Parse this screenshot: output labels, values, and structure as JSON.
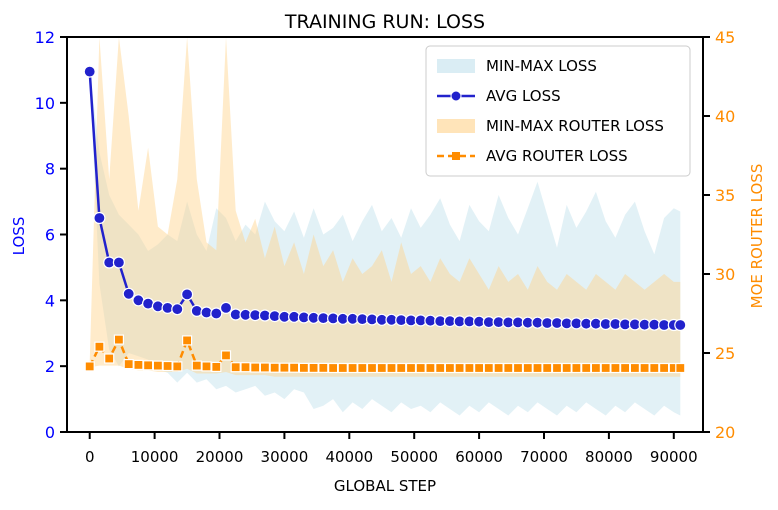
{
  "chart_data": {
    "type": "line",
    "title": "TRAINING RUN: LOSS",
    "xlabel": "GLOBAL STEP",
    "ylabel_left": "LOSS",
    "ylabel_right": "MOE ROUTER LOSS",
    "xlim": [
      -3500,
      94500
    ],
    "ylim_left": [
      0,
      12
    ],
    "ylim_right": [
      20,
      45
    ],
    "xticks": [
      0,
      10000,
      20000,
      30000,
      40000,
      50000,
      60000,
      70000,
      80000,
      90000
    ],
    "yticks_left": [
      0,
      2,
      4,
      6,
      8,
      10,
      12
    ],
    "yticks_right": [
      20,
      25,
      30,
      35,
      40,
      45
    ],
    "legend_position": "top-right",
    "grid": false,
    "colors": {
      "avg_loss": "#2222cc",
      "left_axis": "#0000ff",
      "router": "#ff8c00",
      "minmax_loss_fill": "#add8e6",
      "minmax_router_fill": "#ffd28a"
    },
    "x": [
      0,
      1500,
      3000,
      4500,
      6000,
      7500,
      9000,
      10500,
      12000,
      13500,
      15000,
      16500,
      18000,
      19500,
      21000,
      22500,
      24000,
      25500,
      27000,
      28500,
      30000,
      31500,
      33000,
      34500,
      36000,
      37500,
      39000,
      40500,
      42000,
      43500,
      45000,
      46500,
      48000,
      49500,
      51000,
      52500,
      54000,
      55500,
      57000,
      58500,
      60000,
      61500,
      63000,
      64500,
      66000,
      67500,
      69000,
      70500,
      72000,
      73500,
      75000,
      76500,
      78000,
      79500,
      81000,
      82500,
      84000,
      85500,
      87000,
      88500,
      90000,
      91000
    ],
    "series": [
      {
        "name": "AVG LOSS",
        "axis": "left",
        "values": [
          10.95,
          6.5,
          5.15,
          5.15,
          4.2,
          4.0,
          3.9,
          3.82,
          3.77,
          3.73,
          4.18,
          3.68,
          3.63,
          3.6,
          3.77,
          3.57,
          3.56,
          3.55,
          3.54,
          3.52,
          3.5,
          3.5,
          3.48,
          3.47,
          3.46,
          3.45,
          3.44,
          3.44,
          3.43,
          3.42,
          3.41,
          3.41,
          3.4,
          3.39,
          3.39,
          3.38,
          3.37,
          3.37,
          3.36,
          3.36,
          3.35,
          3.34,
          3.34,
          3.33,
          3.33,
          3.32,
          3.32,
          3.31,
          3.31,
          3.3,
          3.3,
          3.29,
          3.29,
          3.28,
          3.28,
          3.27,
          3.27,
          3.26,
          3.26,
          3.25,
          3.25,
          3.25
        ]
      },
      {
        "name": "AVG ROUTER LOSS",
        "axis": "right",
        "values": [
          24.15,
          25.4,
          24.65,
          25.85,
          24.3,
          24.25,
          24.22,
          24.2,
          24.18,
          24.15,
          25.8,
          24.2,
          24.15,
          24.12,
          24.85,
          24.1,
          24.1,
          24.08,
          24.08,
          24.07,
          24.07,
          24.07,
          24.06,
          24.06,
          24.06,
          24.05,
          24.05,
          24.05,
          24.05,
          24.05,
          24.05,
          24.05,
          24.05,
          24.05,
          24.05,
          24.05,
          24.05,
          24.05,
          24.05,
          24.05,
          24.05,
          24.05,
          24.05,
          24.05,
          24.05,
          24.05,
          24.05,
          24.05,
          24.05,
          24.05,
          24.05,
          24.05,
          24.05,
          24.05,
          24.05,
          24.05,
          24.05,
          24.05,
          24.05,
          24.05,
          24.05,
          24.05
        ]
      }
    ],
    "bands": [
      {
        "name": "MIN-MAX LOSS",
        "axis": "left",
        "lower": [
          10.9,
          4.5,
          2.5,
          2.0,
          2.4,
          2.3,
          2.2,
          1.9,
          1.8,
          1.5,
          1.8,
          1.5,
          1.6,
          1.3,
          1.4,
          1.2,
          1.3,
          1.4,
          1.1,
          1.2,
          1.0,
          1.3,
          1.2,
          0.7,
          0.8,
          1.0,
          0.6,
          0.9,
          0.7,
          1.0,
          0.8,
          0.6,
          0.9,
          0.7,
          0.8,
          0.6,
          0.9,
          0.7,
          0.5,
          0.8,
          0.6,
          0.9,
          0.7,
          0.5,
          0.8,
          0.6,
          0.9,
          0.7,
          0.5,
          0.8,
          0.6,
          0.9,
          0.7,
          0.5,
          0.8,
          0.6,
          0.9,
          0.7,
          0.5,
          0.8,
          0.6,
          0.5
        ],
        "upper": [
          11.0,
          8.5,
          7.2,
          6.6,
          6.3,
          6.0,
          5.5,
          5.7,
          6.0,
          5.8,
          7.0,
          6.0,
          5.5,
          6.8,
          6.5,
          5.8,
          6.3,
          6.0,
          7.0,
          6.4,
          6.1,
          6.7,
          5.9,
          6.8,
          6.0,
          6.2,
          6.6,
          5.8,
          6.4,
          6.9,
          6.1,
          6.5,
          5.9,
          6.8,
          6.2,
          6.6,
          7.1,
          6.3,
          5.8,
          6.9,
          6.4,
          6.1,
          7.2,
          6.5,
          6.0,
          6.8,
          7.6,
          6.6,
          5.6,
          6.9,
          6.2,
          6.7,
          7.3,
          6.4,
          5.9,
          6.6,
          7.0,
          6.1,
          5.4,
          6.5,
          6.8,
          6.7
        ]
      },
      {
        "name": "MIN-MAX ROUTER LOSS",
        "axis": "right",
        "lower": [
          24.1,
          24.2,
          24.2,
          24.2,
          24.0,
          23.9,
          23.9,
          23.8,
          23.8,
          23.8,
          24.0,
          23.7,
          23.7,
          23.7,
          23.8,
          23.6,
          23.6,
          23.6,
          23.6,
          23.5,
          23.5,
          23.5,
          23.5,
          23.5,
          23.5,
          23.5,
          23.5,
          23.5,
          23.5,
          23.5,
          23.5,
          23.5,
          23.5,
          23.5,
          23.5,
          23.5,
          23.5,
          23.5,
          23.5,
          23.5,
          23.5,
          23.5,
          23.5,
          23.5,
          23.5,
          23.5,
          23.5,
          23.5,
          23.5,
          23.5,
          23.5,
          23.5,
          23.5,
          23.5,
          23.5,
          23.5,
          23.5,
          23.5,
          23.5,
          23.5,
          23.5,
          23.5
        ],
        "upper": [
          24.4,
          45.0,
          36.0,
          45.0,
          40.0,
          34.0,
          38.0,
          33.0,
          32.5,
          36.0,
          45.0,
          36.0,
          32.0,
          31.5,
          45.0,
          34.0,
          32.0,
          33.5,
          31.0,
          33.0,
          30.5,
          32.0,
          30.0,
          32.5,
          30.5,
          31.5,
          29.5,
          31.0,
          30.0,
          30.5,
          31.5,
          29.5,
          32.0,
          30.0,
          30.5,
          29.5,
          31.0,
          30.0,
          29.5,
          31.0,
          30.0,
          29.0,
          30.5,
          29.5,
          30.0,
          29.0,
          30.5,
          29.5,
          29.0,
          30.0,
          29.5,
          29.0,
          30.0,
          29.5,
          29.0,
          30.0,
          29.5,
          29.0,
          29.5,
          30.0,
          29.5,
          29.5
        ]
      }
    ],
    "legend": [
      {
        "label": "MIN-MAX LOSS",
        "kind": "patch",
        "color": "#add8e6"
      },
      {
        "label": "AVG LOSS",
        "kind": "line-circle",
        "color": "#2222cc"
      },
      {
        "label": "MIN-MAX ROUTER LOSS",
        "kind": "patch",
        "color": "#ffd28a"
      },
      {
        "label": "AVG ROUTER LOSS",
        "kind": "line-square-dashed",
        "color": "#ff8c00"
      }
    ]
  }
}
